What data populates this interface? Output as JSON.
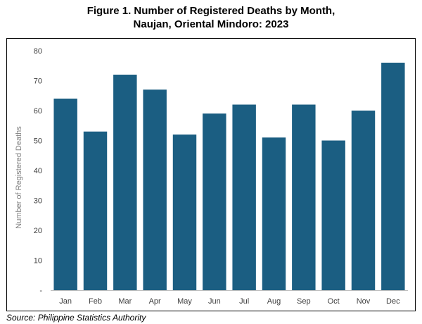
{
  "chart_data": {
    "type": "bar",
    "title_line1": "Figure 1. Number of Registered Deaths by Month,",
    "title_line2": "Naujan, Oriental Mindoro: 2023",
    "xlabel": "",
    "ylabel": "Number of Registered Deaths",
    "categories": [
      "Jan",
      "Feb",
      "Mar",
      "Apr",
      "May",
      "Jun",
      "Jul",
      "Aug",
      "Sep",
      "Oct",
      "Nov",
      "Dec"
    ],
    "values": [
      64,
      53,
      72,
      67,
      52,
      59,
      62,
      51,
      62,
      50,
      60,
      76
    ],
    "ylim": [
      0,
      80
    ],
    "yticks": [
      0,
      10,
      20,
      30,
      40,
      50,
      60,
      70,
      80
    ],
    "ytick_labels": [
      "-",
      "10",
      "20",
      "30",
      "40",
      "50",
      "60",
      "70",
      "80"
    ],
    "grid": false,
    "legend": "none",
    "bar_color": "#1b5e82"
  },
  "source": "Source: Philippine Statistics Authority"
}
